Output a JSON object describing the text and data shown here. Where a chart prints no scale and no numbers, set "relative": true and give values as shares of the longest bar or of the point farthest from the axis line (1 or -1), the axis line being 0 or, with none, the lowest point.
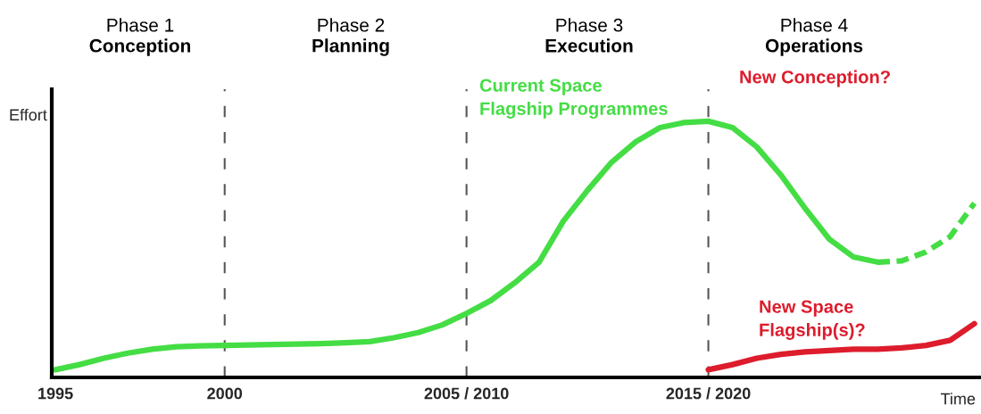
{
  "chart_data": {
    "type": "line",
    "relative": true,
    "xlabel": "Time",
    "ylabel": "Effort",
    "categories": [
      "1995",
      null,
      null,
      null,
      null,
      null,
      null,
      "2000",
      null,
      null,
      null,
      null,
      null,
      null,
      null,
      null,
      null,
      "2005 / 2010",
      null,
      null,
      null,
      null,
      null,
      null,
      null,
      null,
      null,
      "2015 / 2020",
      null,
      null,
      null,
      null,
      null,
      null,
      null,
      null,
      null,
      null,
      null
    ],
    "ref_lines": [
      {
        "axis": "x",
        "value": "2000",
        "color": "#555555",
        "line_style": "dashed"
      },
      {
        "axis": "x",
        "value": "2005 / 2010",
        "color": "#555555",
        "line_style": "dashed"
      },
      {
        "axis": "x",
        "value": "2015 / 2020",
        "color": "#555555",
        "line_style": "dashed"
      }
    ],
    "series": [
      {
        "color": "#44dd44",
        "line_style": "solid",
        "values": [
          0.03,
          0.05,
          0.075,
          0.095,
          0.11,
          0.12,
          0.123,
          0.125,
          0.127,
          0.128,
          0.13,
          0.132,
          0.135,
          0.14,
          0.155,
          0.175,
          0.205,
          0.25,
          0.3,
          0.37,
          0.45,
          0.61,
          0.73,
          0.84,
          0.92,
          0.975,
          0.995,
          1.0,
          0.975,
          0.9,
          0.79,
          0.66,
          0.54,
          0.47,
          0.45,
          null,
          null,
          null,
          null
        ]
      },
      {
        "color": "#44dd44",
        "line_style": "dashed",
        "values": [
          null,
          null,
          null,
          null,
          null,
          null,
          null,
          null,
          null,
          null,
          null,
          null,
          null,
          null,
          null,
          null,
          null,
          null,
          null,
          null,
          null,
          null,
          null,
          null,
          null,
          null,
          null,
          null,
          null,
          null,
          null,
          null,
          null,
          null,
          0.45,
          0.455,
          0.49,
          0.55,
          0.68
        ]
      },
      {
        "color": "#dd1c2c",
        "line_style": "solid",
        "values": [
          null,
          null,
          null,
          null,
          null,
          null,
          null,
          null,
          null,
          null,
          null,
          null,
          null,
          null,
          null,
          null,
          null,
          null,
          null,
          null,
          null,
          null,
          null,
          null,
          null,
          null,
          null,
          0.03,
          0.05,
          0.075,
          0.09,
          0.1,
          0.105,
          0.11,
          0.11,
          0.115,
          0.125,
          0.145,
          0.21
        ]
      }
    ],
    "annotations": [
      "Phase 1",
      "Conception",
      "Phase 2",
      "Planning",
      "Phase 3",
      "Execution",
      "Phase 4",
      "Operations",
      "Current Space\nFlagship Programmes",
      "New Conception?",
      "New Space\nFlagship(s)?"
    ],
    "grid": false,
    "legend": false
  }
}
